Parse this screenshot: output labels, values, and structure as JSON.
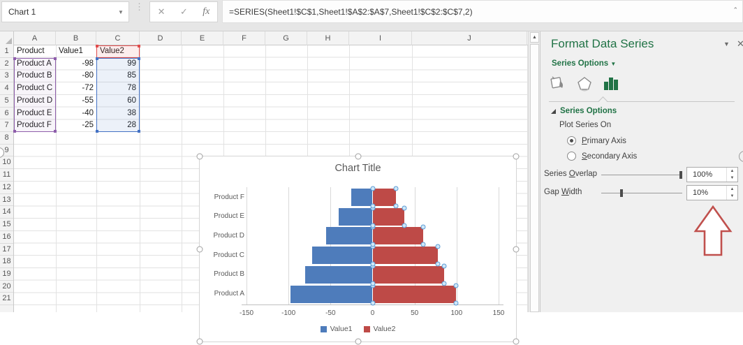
{
  "formula_bar": {
    "name_box": "Chart 1",
    "formula": "=SERIES(Sheet1!$C$1,Sheet1!$A$2:$A$7,Sheet1!$C$2:$C$7,2)",
    "cancel_label": "✕",
    "enter_label": "✓",
    "fx_label": "fx"
  },
  "sheet": {
    "columns": [
      "A",
      "B",
      "C",
      "D",
      "E",
      "F",
      "G",
      "H",
      "I",
      "J"
    ],
    "visible_rows": 21,
    "header_row": {
      "a": "Product",
      "b": "Value1",
      "c": "Value2"
    },
    "data": [
      {
        "product": "Product A",
        "value1": "-98",
        "value2": "99"
      },
      {
        "product": "Product B",
        "value1": "-80",
        "value2": "85"
      },
      {
        "product": "Product C",
        "value1": "-72",
        "value2": "78"
      },
      {
        "product": "Product D",
        "value1": "-55",
        "value2": "60"
      },
      {
        "product": "Product E",
        "value1": "-40",
        "value2": "38"
      },
      {
        "product": "Product F",
        "value1": "-25",
        "value2": "28"
      }
    ]
  },
  "chart_data": {
    "type": "bar",
    "orientation": "horizontal",
    "title": "Chart Title",
    "categories": [
      "Product A",
      "Product B",
      "Product C",
      "Product D",
      "Product E",
      "Product F"
    ],
    "series": [
      {
        "name": "Value1",
        "color": "#4e7cbb",
        "values": [
          -98,
          -80,
          -72,
          -55,
          -40,
          -25
        ]
      },
      {
        "name": "Value2",
        "color": "#be4a47",
        "values": [
          99,
          85,
          78,
          60,
          38,
          28
        ]
      }
    ],
    "x_ticks": [
      -150,
      -100,
      -50,
      0,
      50,
      100,
      150
    ],
    "xlim": [
      -150,
      150
    ],
    "grid": true,
    "legend_position": "bottom",
    "selected_series": "Value2"
  },
  "panel": {
    "title": "Format Data Series",
    "tab_dropdown_label": "Series Options",
    "section_title": "Series Options",
    "plot_series_on": "Plot Series On",
    "radio_primary": {
      "pre": "",
      "key": "P",
      "post": "rimary Axis"
    },
    "radio_secondary": {
      "pre": "",
      "key": "S",
      "post": "econdary Axis"
    },
    "overlap_label": {
      "pre": "Series ",
      "key": "O",
      "post": "verlap"
    },
    "gap_label": {
      "pre": "Gap ",
      "key": "W",
      "post": "idth"
    },
    "overlap_value": "100%",
    "gap_value": "10%"
  },
  "colors": {
    "excel_green": "#217346",
    "series1_blue": "#4e7cbb",
    "series2_red": "#be4a47",
    "range_purple": "#8e5eab",
    "range_blue": "#4472c4",
    "range_red": "#e04c4c",
    "arrow_red": "#c0504d"
  }
}
